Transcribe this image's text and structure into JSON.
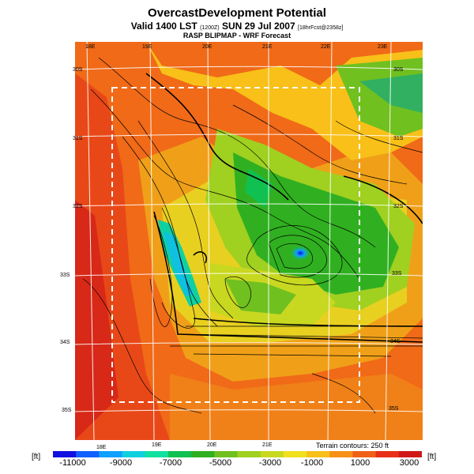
{
  "header": {
    "title": "OvercastDevelopment Potential",
    "valid_prefix": "Valid 1400 LST",
    "valid_small": "(1200Z)",
    "valid_date": "SUN 29 Jul 2007",
    "valid_suffix": "[18hrFcst@2358z]",
    "subtitle": "RASP BLIPMAP - WRF Forecast"
  },
  "map": {
    "lon_labels_top": [
      "18E",
      "19E",
      "20E",
      "21E",
      "22E",
      "23E"
    ],
    "lon_labels_bottom": [
      "18E",
      "19E",
      "20E",
      "21E"
    ],
    "lat_labels_left": [
      "30S",
      "31S",
      "32S",
      "33S",
      "34S",
      "35S"
    ],
    "lat_labels_right": [
      "30S",
      "31S",
      "32S",
      "33S",
      "34S",
      "35S"
    ],
    "terrain_note": "Terrain contours: 250 ft"
  },
  "legend": {
    "unit_left": "[ft]",
    "unit_right": "[ft]",
    "ticks": [
      "-11000",
      "-9000",
      "-7000",
      "-5000",
      "-3000",
      "-1000",
      "1000",
      "3000"
    ],
    "colors": [
      "#1010e0",
      "#1060ff",
      "#10a0ff",
      "#10d0e0",
      "#10e0a0",
      "#10c050",
      "#30b020",
      "#70c020",
      "#a0d020",
      "#c8d820",
      "#f0e020",
      "#f8c018",
      "#f89018",
      "#f06018",
      "#e83018",
      "#d01818"
    ]
  }
}
